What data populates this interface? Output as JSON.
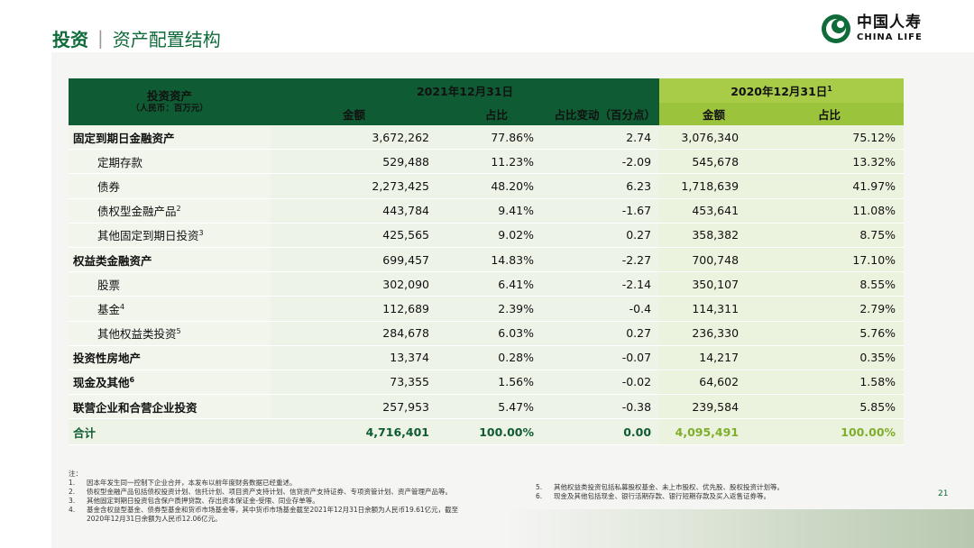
{
  "header": {
    "title_main": "投资",
    "title_sep": "|",
    "title_sub": "资产配置结构"
  },
  "logo": {
    "cn": "中国人寿",
    "en": "CHINA LIFE",
    "color": "#0f6b3a"
  },
  "table": {
    "corner_title": "投资资产",
    "corner_unit": "（人民币：百万元）",
    "group_2021": "2021年12月31日",
    "group_2020": "2020年12月31日",
    "group_2020_sup": "1",
    "col_amount": "金额",
    "col_ratio": "占比",
    "col_change": "占比变动（百分点）",
    "col_amount_2020": "金额",
    "col_ratio_2020": "占比",
    "rows": [
      {
        "label": "固定到期日金融资产",
        "sup": "",
        "a": "3,672,262",
        "r": "77.86%",
        "c": "2.74",
        "a20": "3,076,340",
        "r20": "75.12%"
      },
      {
        "label": "定期存款",
        "sup": "",
        "a": "529,488",
        "r": "11.23%",
        "c": "-2.09",
        "a20": "545,678",
        "r20": "13.32%"
      },
      {
        "label": "债券",
        "sup": "",
        "a": "2,273,425",
        "r": "48.20%",
        "c": "6.23",
        "a20": "1,718,639",
        "r20": "41.97%"
      },
      {
        "label": "债权型金融产品",
        "sup": "2",
        "a": "443,784",
        "r": "9.41%",
        "c": "-1.67",
        "a20": "453,641",
        "r20": "11.08%"
      },
      {
        "label": "其他固定到期日投资",
        "sup": "3",
        "a": "425,565",
        "r": "9.02%",
        "c": "0.27",
        "a20": "358,382",
        "r20": "8.75%"
      },
      {
        "label": "权益类金融资产",
        "sup": "",
        "a": "699,457",
        "r": "14.83%",
        "c": "-2.27",
        "a20": "700,748",
        "r20": "17.10%"
      },
      {
        "label": "股票",
        "sup": "",
        "a": "302,090",
        "r": "6.41%",
        "c": "-2.14",
        "a20": "350,107",
        "r20": "8.55%"
      },
      {
        "label": "基金",
        "sup": "4",
        "a": "112,689",
        "r": "2.39%",
        "c": "-0.4",
        "a20": "114,311",
        "r20": "2.79%"
      },
      {
        "label": "其他权益类投资",
        "sup": "5",
        "a": "284,678",
        "r": "6.03%",
        "c": "0.27",
        "a20": "236,330",
        "r20": "5.76%"
      },
      {
        "label": "投资性房地产",
        "sup": "",
        "a": "13,374",
        "r": "0.28%",
        "c": "-0.07",
        "a20": "14,217",
        "r20": "0.35%"
      },
      {
        "label": "现金及其他",
        "sup": "6",
        "a": "73,355",
        "r": "1.56%",
        "c": "-0.02",
        "a20": "64,602",
        "r20": "1.58%"
      },
      {
        "label": "联营企业和合营企业投资",
        "sup": "",
        "a": "257,953",
        "r": "5.47%",
        "c": "-0.38",
        "a20": "239,584",
        "r20": "5.85%"
      }
    ],
    "total": {
      "label": "合计",
      "a": "4,716,401",
      "r": "100.00%",
      "c": "0.00",
      "a20": "4,095,491",
      "r20": "100.00%"
    }
  },
  "notes": {
    "title": "注：",
    "left": [
      {
        "n": "1.",
        "t": "因本年发生同一控制下企业合并，本发布以前年度财务数据已经重述。"
      },
      {
        "n": "2.",
        "t": "债权型金融产品包括债权投资计划、信托计划、项目资产支持计划、信贷资产支持证券、专项资管计划、资产管理产品等。"
      },
      {
        "n": "3.",
        "t": "其他固定到期日投资包含保户质押贷款、存出资本保证金-受限、同业存单等。"
      },
      {
        "n": "4.",
        "t": "基金含权益型基金、债券型基金和货币市场基金等，其中货币市场基金截至2021年12月31日余额为人民币19.61亿元，截至"
      },
      {
        "n": "",
        "t": "2020年12月31日余额为人民币12.06亿元。"
      }
    ],
    "right": [
      {
        "n": "5.",
        "t": "其他权益类投资包括私募股权基金、未上市股权、优先股、股权投资计划等。"
      },
      {
        "n": "6.",
        "t": "现金及其他包括现金、银行活期存款、银行短期存款及买入返售证券等。"
      }
    ]
  },
  "page_number": "21"
}
